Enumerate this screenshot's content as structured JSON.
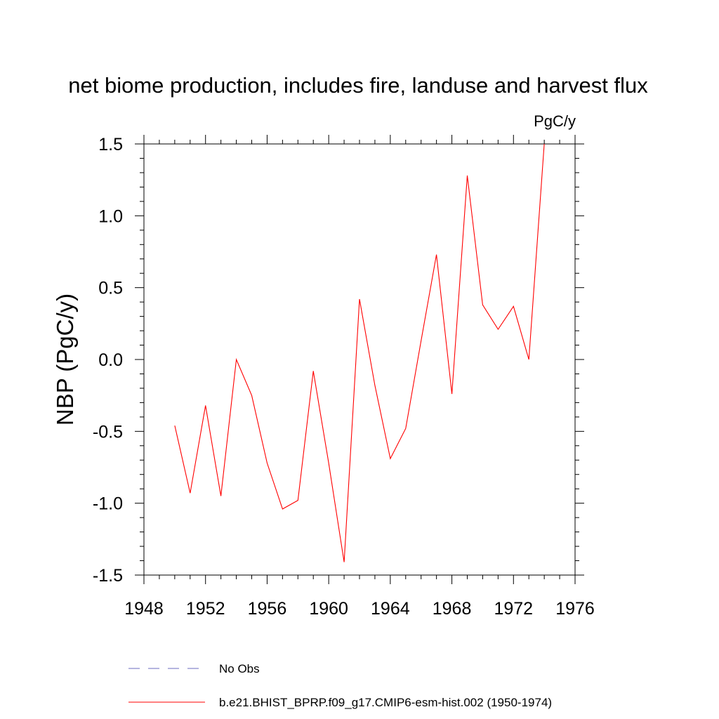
{
  "chart_data": {
    "type": "line",
    "title": "net biome production, includes fire, landuse and harvest flux",
    "units": "PgC/y",
    "xlabel": "",
    "ylabel": "NBP  (PgC/y)",
    "xlim": [
      1948,
      1976
    ],
    "ylim": [
      -1.5,
      1.5
    ],
    "xticks": [
      1948,
      1952,
      1956,
      1960,
      1964,
      1968,
      1972,
      1976
    ],
    "xtick_labels": [
      "1948",
      "1952",
      "1956",
      "1960",
      "1964",
      "1968",
      "1972",
      "1976"
    ],
    "yticks": [
      -1.5,
      -1.0,
      -0.5,
      0.0,
      0.5,
      1.0,
      1.5
    ],
    "ytick_labels": [
      "-1.5",
      "-1.0",
      "-0.5",
      "0.0",
      "0.5",
      "1.0",
      "1.5"
    ],
    "x_minor_step": 1,
    "y_minor_step": 0.1,
    "series": [
      {
        "name": "b.e21.BHIST_BPRP.f09_g17.CMIP6-esm-hist.002 (1950-1974)",
        "color": "#ff0000",
        "x": [
          1950,
          1951,
          1952,
          1953,
          1954,
          1955,
          1956,
          1957,
          1958,
          1959,
          1960,
          1961,
          1962,
          1963,
          1964,
          1965,
          1966,
          1967,
          1968,
          1969,
          1970,
          1971,
          1972,
          1973,
          1974
        ],
        "y": [
          -0.46,
          -0.93,
          -0.32,
          -0.95,
          0.0,
          -0.25,
          -0.72,
          -1.04,
          -0.98,
          -0.08,
          -0.72,
          -1.41,
          0.42,
          -0.18,
          -0.69,
          -0.48,
          0.13,
          0.73,
          -0.24,
          1.28,
          0.38,
          0.21,
          0.37,
          0.0,
          1.5
        ]
      }
    ],
    "legend": [
      {
        "label": "No Obs",
        "style": "dashed",
        "color": "#6b6bbf"
      },
      {
        "label": "b.e21.BHIST_BPRP.f09_g17.CMIP6-esm-hist.002 (1950-1974)",
        "style": "solid",
        "color": "#ff0000"
      }
    ],
    "grid": false,
    "legend_position": "bottom"
  }
}
